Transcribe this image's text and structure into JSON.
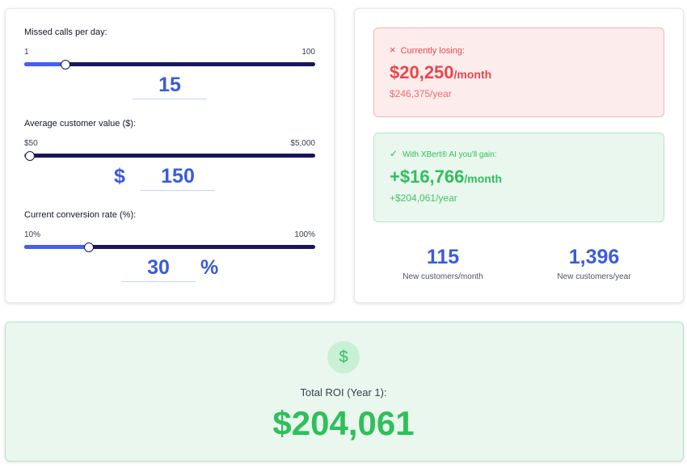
{
  "inputs": [
    {
      "label": "Missed calls per day:",
      "min": {
        "value": 1,
        "label": "1"
      },
      "max": {
        "value": 100,
        "label": "100"
      },
      "value": 15
    },
    {
      "label": "Average customer value ($):",
      "min": {
        "value": 50,
        "label": "$50"
      },
      "max": {
        "value": 5000,
        "label": "$5,000"
      },
      "prefix": "$",
      "value": 150
    },
    {
      "label": "Current conversion rate (%):",
      "min": {
        "value": 10,
        "label": "10%"
      },
      "max": {
        "value": 100,
        "label": "100%"
      },
      "value": 30,
      "suffix": "%"
    }
  ],
  "losing": {
    "icon": "×",
    "label": "Currently losing:",
    "monthly": "$20,250",
    "monthly_unit": "/month",
    "yearly": "$246,375/year"
  },
  "gain": {
    "icon": "✓",
    "label": "With XBert® AI you'll gain:",
    "monthly": "+$16,766",
    "monthly_unit": "/month",
    "yearly": "+$204,061/year"
  },
  "stats": [
    {
      "value": "115",
      "label": "New customers/month"
    },
    {
      "value": "1,396",
      "label": "New customers/year"
    }
  ],
  "roi": {
    "icon": "$",
    "label": "Total ROI (Year 1):",
    "value": "$204,061"
  }
}
